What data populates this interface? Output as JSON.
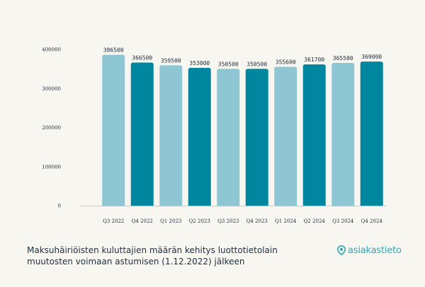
{
  "chart_data": {
    "type": "bar",
    "categories": [
      "Q3 2022",
      "Q4 2022",
      "Q1 2023",
      "Q2 2023",
      "Q3 2023",
      "Q4 2023",
      "Q1 2024",
      "Q2 2024",
      "Q3 2024",
      "Q4 2024"
    ],
    "values": [
      386500,
      366500,
      359500,
      353000,
      350500,
      350500,
      355600,
      361700,
      365500,
      369000
    ],
    "data_labels": [
      "386500",
      "366500",
      "359500",
      "353000",
      "350500",
      "350500",
      "355600",
      "361700",
      "365500",
      "369000"
    ],
    "yticks": [
      "0",
      "100000",
      "200000",
      "300000",
      "400000"
    ],
    "ytick_values": [
      0,
      100000,
      200000,
      300000,
      400000
    ],
    "ylim": [
      0,
      400000
    ],
    "grid": false,
    "legend": "none",
    "colors": [
      "#8fc6d3",
      "#00869e"
    ],
    "title": "",
    "xlabel": "",
    "ylabel": ""
  },
  "caption": {
    "line1": "Maksuhäiriöisten kuluttajien määrän kehitys luottotietolain",
    "line2": "muutosten voimaan astumisen (1.12.2022) jälkeen"
  },
  "brand": {
    "name": "asiakastieto",
    "icon": "location-pin-icon",
    "color": "#2ba6b8"
  }
}
